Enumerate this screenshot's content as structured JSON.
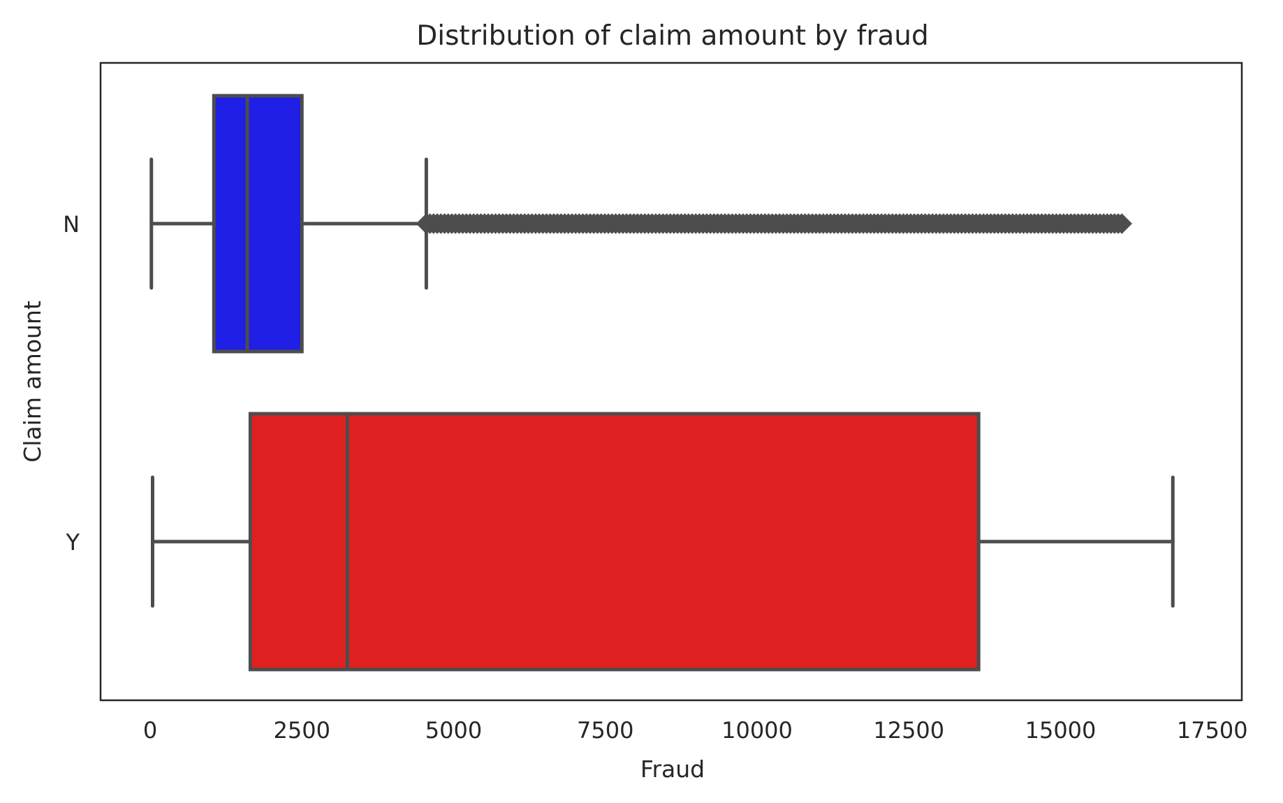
{
  "chart_data": {
    "type": "boxplot",
    "orientation": "horizontal",
    "title": "Distribution of claim amount by fraud",
    "xlabel": "Fraud",
    "ylabel": "Claim amount",
    "xlim": [
      -800,
      17500
    ],
    "x_ticks": [
      0,
      2500,
      5000,
      7500,
      10000,
      12500,
      15000,
      17500
    ],
    "x_tick_labels": [
      "0",
      "2500",
      "5000",
      "7500",
      "10000",
      "12500",
      "15000",
      "17500"
    ],
    "grid": false,
    "categories": [
      "N",
      "Y"
    ],
    "boxes": [
      {
        "category": "N",
        "color": "#1f1fe5",
        "whisker_low": 20,
        "q1": 1050,
        "median": 1600,
        "q3": 2500,
        "whisker_high": 4550,
        "outliers_range": [
          4550,
          16050
        ]
      },
      {
        "category": "Y",
        "color": "#df2020",
        "whisker_low": 40,
        "q1": 1650,
        "median": 3250,
        "q3": 13650,
        "whisker_high": 16850
      }
    ],
    "line_color": "#4d4d4d"
  }
}
